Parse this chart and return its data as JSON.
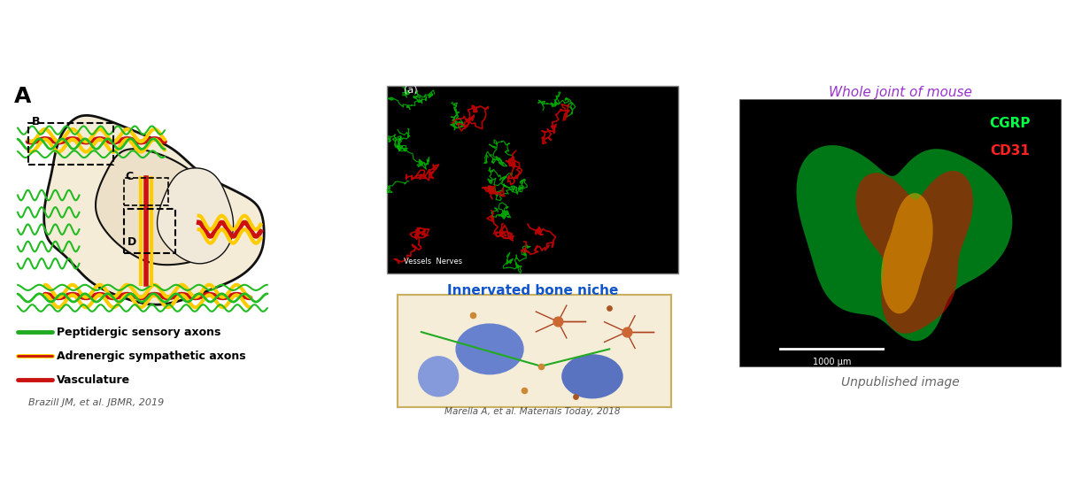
{
  "title_A": "A",
  "legend_items": [
    {
      "label": "Peptidergic sensory axons",
      "color": "#22aa22"
    },
    {
      "label": "Adrenergic sympathetic axons",
      "color": "#ffdd00"
    },
    {
      "label": "Vasculature",
      "color": "#cc1111"
    }
  ],
  "label_innervated": "Innervated bone niche",
  "label_whole_joint": "Whole joint of mouse",
  "label_CGRP": "CGRP",
  "label_CD31": "CD31",
  "label_unpublished": "Unpublished image",
  "citation_left": "Brazill JM, et al. JBMR, 2019",
  "citation_right": "Marella A, et al. Materials Today, 2018",
  "bg_color": "#ffffff",
  "bone_fill": "#f5ecd7",
  "bone_inner_fill": "#ede0c8",
  "bone_outline": "#111111",
  "green_nerve": "#22bb22",
  "yellow_nerve": "#ffcc00",
  "red_vessel": "#cc1111",
  "panel_bg_micro": "#000000",
  "panel_bg_cube": "#f0e8c8",
  "panel_bg_fluor": "#000000",
  "whole_joint_color": "#9933cc",
  "scale_bar_color": "#ffffff",
  "scale_bar_label": "1000 μm"
}
